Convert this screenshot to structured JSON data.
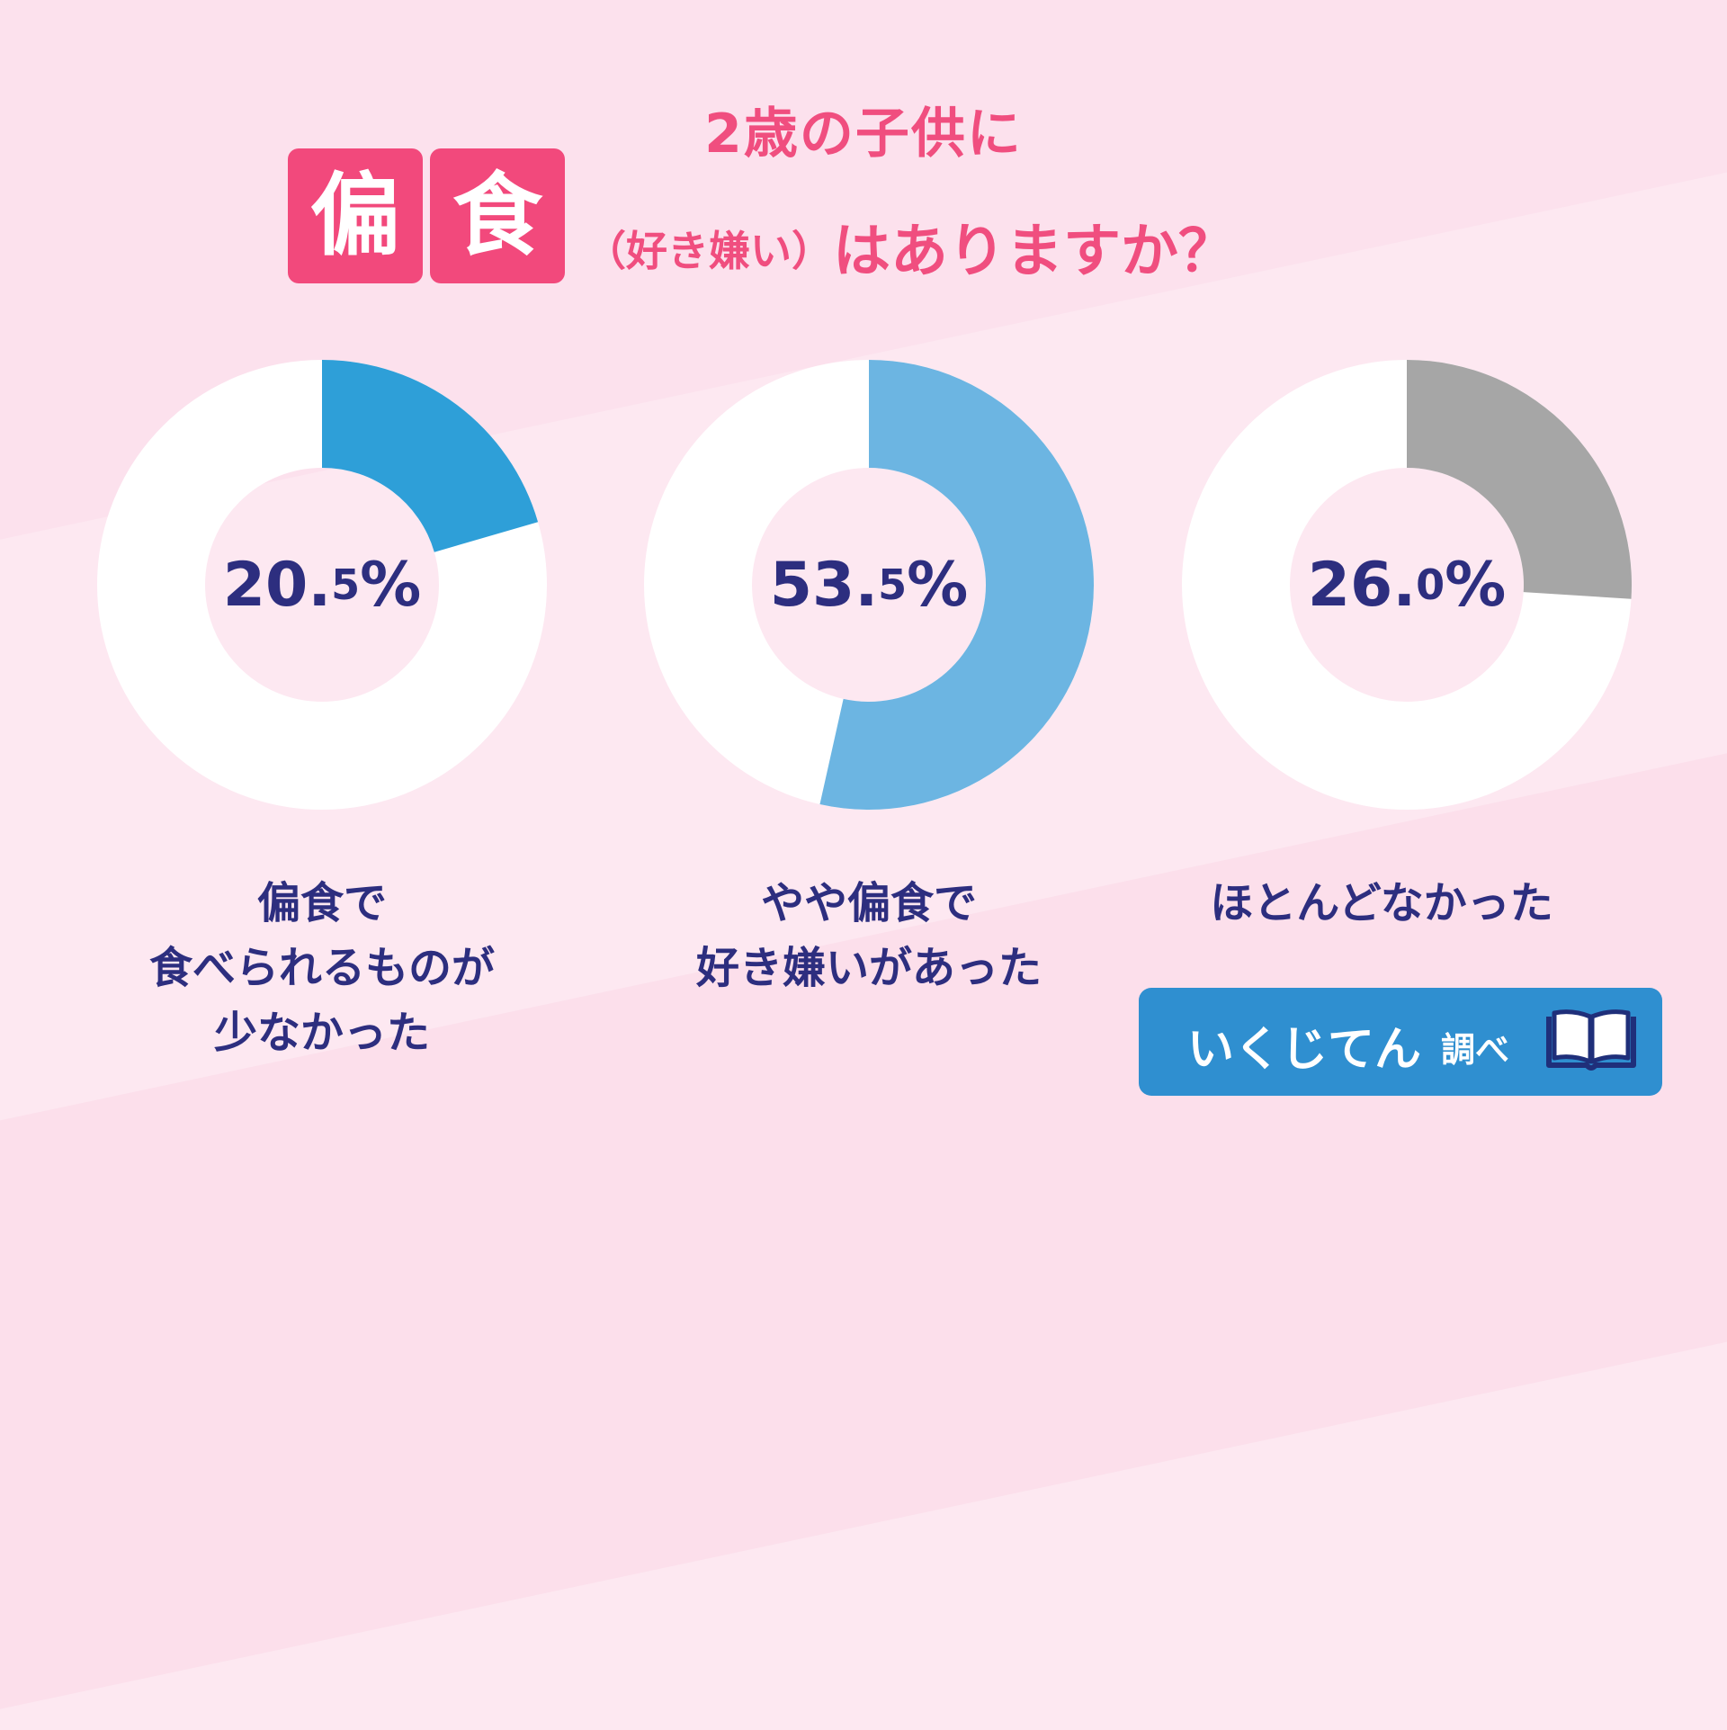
{
  "title": {
    "line1": "2歳の子供に",
    "box_chars": [
      "偏",
      "食"
    ],
    "line2_paren": "（好き嫌い）",
    "line2_rest": "はありますか？"
  },
  "chart_data": {
    "type": "pie",
    "charts": [
      {
        "value_int": "20.",
        "value_dec": "5",
        "value_unit": "%",
        "value": 20.5,
        "color": "#2e9fd8",
        "label_lines": [
          "偏食で",
          "食べられるものが",
          "少なかった"
        ]
      },
      {
        "value_int": "53.",
        "value_dec": "5",
        "value_unit": "%",
        "value": 53.5,
        "color": "#6cb5e2",
        "label_lines": [
          "やや偏食で",
          "好き嫌いがあった"
        ]
      },
      {
        "value_int": "26.",
        "value_dec": "0",
        "value_unit": "%",
        "value": 26.0,
        "color": "#a6a6a6",
        "label_lines": [
          "ほとんどなかった"
        ]
      }
    ]
  },
  "badge": {
    "name": "いくじてん",
    "sub": "調べ",
    "icon": "book-icon"
  },
  "colors": {
    "title_pink": "#f04e7f",
    "box_pink": "#f2497c",
    "navy": "#2d2e7f",
    "badge_blue": "#2f8fd0",
    "background": "#fde8f1"
  }
}
